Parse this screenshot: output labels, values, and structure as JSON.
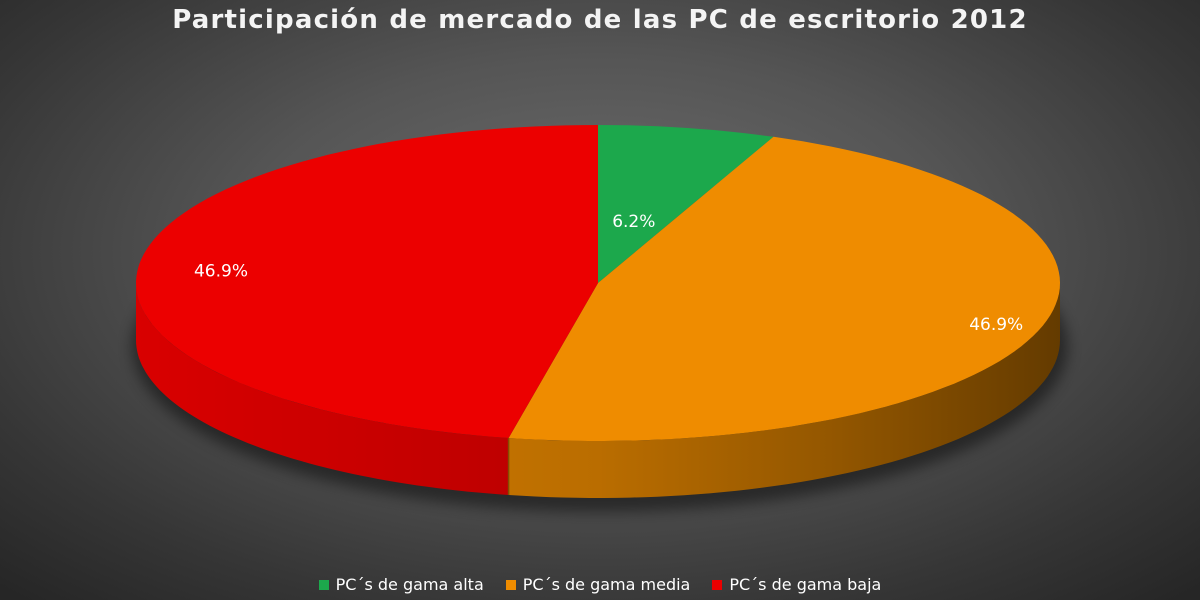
{
  "chart_data": {
    "type": "pie",
    "title": "Participación de mercado de las PC de escritorio 2012",
    "slices": [
      {
        "name": "PC´s de gama alta",
        "value": 6.2,
        "label": "6.2%",
        "color": "#1ca84c"
      },
      {
        "name": "PC´s de gama media",
        "value": 46.9,
        "label": "46.9%",
        "color": "#ef8c00"
      },
      {
        "name": "PC´s de gama baja",
        "value": 46.9,
        "label": "46.9%",
        "color": "#ec0000"
      }
    ],
    "legend_position": "bottom",
    "three_d": true
  }
}
